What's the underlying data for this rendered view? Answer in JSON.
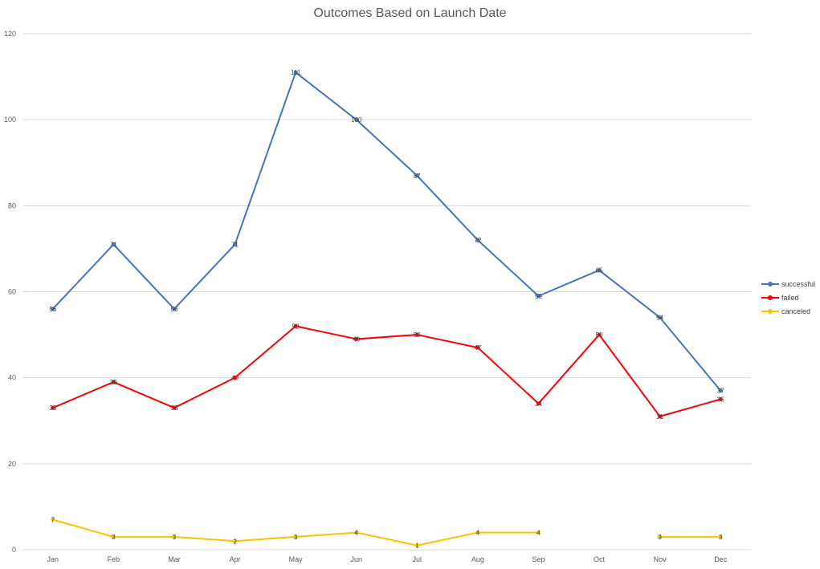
{
  "chart_data": {
    "type": "line",
    "title": "Outcomes Based on Launch Date",
    "categories": [
      "Jan",
      "Feb",
      "Mar",
      "Apr",
      "May",
      "Jun",
      "Jul",
      "Aug",
      "Sep",
      "Oct",
      "Nov",
      "Dec"
    ],
    "ylim": [
      0,
      120
    ],
    "yticks": [
      0,
      20,
      40,
      60,
      80,
      100,
      120
    ],
    "grid": true,
    "legend_position": "right",
    "series": [
      {
        "name": "successful",
        "color": "#4472C4",
        "values": [
          56,
          71,
          56,
          71,
          111,
          100,
          87,
          72,
          59,
          65,
          54,
          37
        ]
      },
      {
        "name": "failed",
        "color": "#FF0000",
        "values": [
          33,
          39,
          33,
          40,
          52,
          49,
          50,
          47,
          34,
          50,
          31,
          35
        ]
      },
      {
        "name": "canceled",
        "color": "#FFC000",
        "values": [
          7,
          3,
          3,
          2,
          3,
          4,
          1,
          4,
          4,
          null,
          3,
          3
        ]
      }
    ]
  }
}
